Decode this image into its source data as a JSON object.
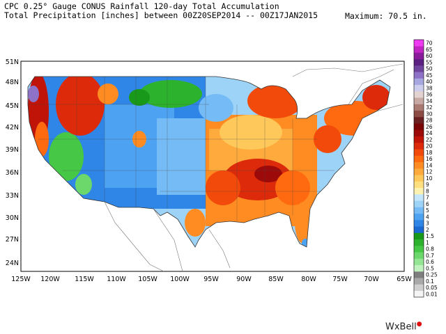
{
  "header": {
    "line1": "CPC 0.25° Gauge CONUS Rainfall 120-day Total Accumulation",
    "line2": "Total Precipitation [inches] between 00Z20SEP2014 -- 00Z17JAN2015",
    "maximum": "Maximum:  70.5 in."
  },
  "map": {
    "lat_labels": [
      "51N",
      "48N",
      "45N",
      "42N",
      "39N",
      "36N",
      "33N",
      "30N",
      "27N",
      "24N"
    ],
    "lon_labels": [
      "125W",
      "120W",
      "115W",
      "110W",
      "105W",
      "100W",
      "95W",
      "90W",
      "85W",
      "80W",
      "75W",
      "70W",
      "65W"
    ]
  },
  "legend": {
    "levels": [
      "0.01",
      "0.05",
      "0.1",
      "0.25",
      "0.5",
      "0.6",
      "0.7",
      "0.8",
      "1",
      "1.5",
      "2",
      "3",
      "4",
      "5",
      "6",
      "7",
      "8",
      "9",
      "10",
      "12",
      "14",
      "16",
      "18",
      "20",
      "22",
      "24",
      "26",
      "28",
      "30",
      "32",
      "34",
      "36",
      "38",
      "40",
      "45",
      "50",
      "55",
      "60",
      "65",
      "70"
    ],
    "colors": [
      "#f4f4f4",
      "#cfcfcf",
      "#a9a9a9",
      "#7e7e7e",
      "#bff2bf",
      "#94e694",
      "#6cd86c",
      "#46c846",
      "#2db22d",
      "#199919",
      "#1d69d2",
      "#2f86e6",
      "#4ea2f2",
      "#75bcf6",
      "#9ed3f8",
      "#c4e6fb",
      "#fff2b0",
      "#ffdf7f",
      "#ffc85a",
      "#ffaa3c",
      "#ff8c22",
      "#ff6a10",
      "#f24a0a",
      "#dc2a0a",
      "#c01408",
      "#9c0a0a",
      "#7a0505",
      "#6a2020",
      "#8c4c44",
      "#aa7a72",
      "#c8a8a2",
      "#e2d2d0",
      "#cdcdee",
      "#a8a8e0",
      "#8e72c8",
      "#70459e",
      "#5c2082",
      "#8a1c9c",
      "#c024c2",
      "#ee3af0"
    ]
  },
  "brand": {
    "name": "WxBell"
  }
}
